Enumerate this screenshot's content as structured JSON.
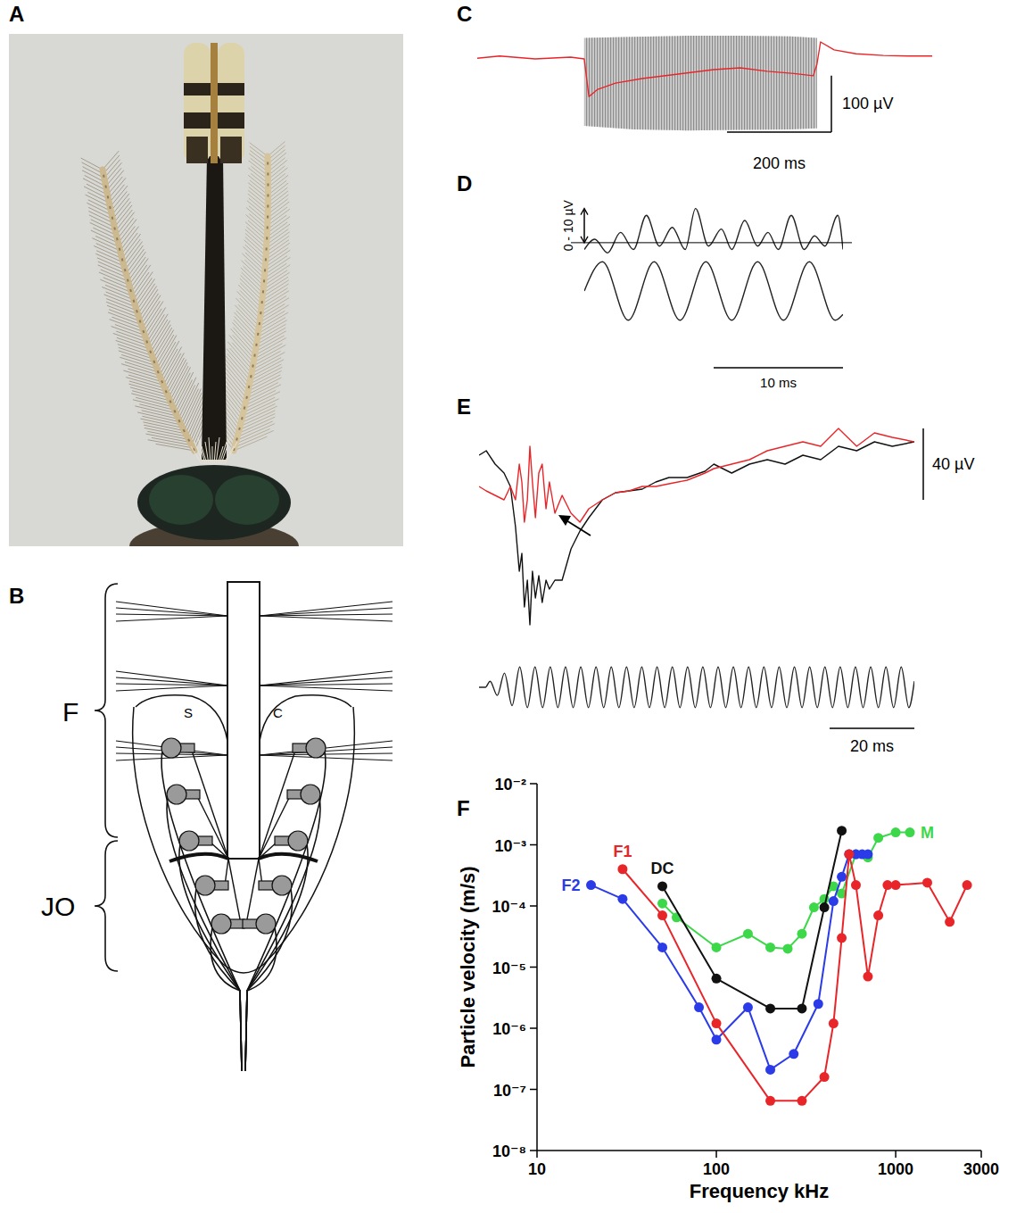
{
  "panel_letters": [
    "A",
    "B",
    "C",
    "D",
    "E",
    "F"
  ],
  "panel_b": {
    "labels": [
      "F",
      "JO",
      "S",
      "C"
    ]
  },
  "chart_data": [
    {
      "type": "line",
      "xlim": [
        0,
        872
      ],
      "ylim": [
        -140,
        50
      ],
      "series": [
        {
          "color": "#e8262a",
          "line_style": "solid",
          "x": [
            0,
            43,
            111,
            179,
            205,
            214,
            231,
            265,
            316,
            385,
            453,
            504,
            556,
            607,
            644,
            651,
            658,
            684,
            726,
            778,
            829,
            872
          ],
          "values": [
            2,
            6,
            1,
            4,
            1,
            -66,
            -53,
            -42,
            -34,
            -26,
            -18,
            -15,
            -21,
            -25,
            -29,
            -9,
            31,
            17,
            10,
            7,
            6,
            6
          ]
        }
      ],
      "band": {
        "color": "#a6a6a6",
        "x": [
          205,
          300,
          400,
          500,
          600,
          651
        ],
        "upper": [
          38,
          40,
          42,
          42,
          41,
          38
        ],
        "lower": [
          -118,
          -124,
          -126,
          -125,
          -124,
          -122
        ]
      },
      "scale_bars": [
        {
          "axis": "y",
          "value": 100,
          "label": "100 µV"
        },
        {
          "axis": "x",
          "value": 200,
          "label": "200 ms"
        }
      ]
    },
    {
      "type": "line",
      "xlim": [
        0,
        20
      ],
      "ylim": [
        -5,
        12
      ],
      "y2lim": [
        -1.1,
        1.1
      ],
      "series": [
        {
          "color": "#222222",
          "line_style": "smooth",
          "x": [
            0,
            0.8,
            1.8,
            2.8,
            3.8,
            4.8,
            5.8,
            6.8,
            7.8,
            8.6,
            9.6,
            10.6,
            11.4,
            12.4,
            13.4,
            14.2,
            15,
            16,
            17,
            17.8,
            18.6,
            19.6,
            20
          ],
          "values": [
            -2,
            1,
            -3,
            3,
            -2,
            8,
            -1,
            4.5,
            -2,
            10,
            -1,
            4,
            -2,
            6.5,
            -1,
            3,
            -2,
            8,
            -2,
            2,
            -1,
            8,
            -2
          ]
        },
        {
          "color": "#222222",
          "line_style": "smooth",
          "axis": "y2",
          "x": [
            0,
            1.4,
            3.4,
            5.4,
            7.4,
            9.4,
            11.4,
            13.4,
            15.4,
            17.4,
            19.4,
            20
          ],
          "values": [
            0,
            1,
            -1,
            1,
            -1,
            1,
            -1,
            1,
            -1,
            1,
            -1,
            -0.8
          ]
        }
      ],
      "scale_bars": [
        {
          "axis": "y",
          "value": 10,
          "label": "0 - 10 µV"
        },
        {
          "axis": "x",
          "value": 10,
          "label": "10 ms"
        }
      ]
    },
    {
      "type": "line",
      "xlim": [
        0,
        102.7
      ],
      "ylim": [
        -100,
        20
      ],
      "y2lim": [
        -1.1,
        1.1
      ],
      "series": [
        {
          "color": "#111111",
          "line_style": "solid",
          "x": [
            0,
            1.7,
            3.8,
            5.9,
            7.4,
            8.6,
            9.5,
            10.1,
            10.7,
            11.4,
            12.0,
            12.6,
            13.3,
            14.1,
            14.9,
            15.8,
            16.6,
            17.9,
            19.6,
            21.7,
            23.8,
            25.9,
            29.1,
            32.2,
            35.4,
            38.5,
            41.7,
            44.8,
            49.1,
            53.3,
            55.4,
            59.6,
            63.8,
            68.0,
            72.2,
            76.4,
            80.6,
            84.8,
            89.1,
            93.3,
            97.5,
            102.7
          ],
          "values": [
            0,
            2.5,
            -5,
            -10,
            -17.5,
            -40,
            -65,
            -55,
            -85,
            -70,
            -95,
            -65,
            -80,
            -67.5,
            -82.5,
            -70,
            -75,
            -70,
            -70,
            -52.5,
            -42.5,
            -35,
            -25,
            -21,
            -20,
            -19,
            -15,
            -12.5,
            -12.5,
            -9,
            -5,
            -10,
            -5,
            -2.5,
            -5,
            0,
            -2.5,
            5,
            2.5,
            7.5,
            5,
            7.5
          ]
        },
        {
          "color": "#e8262a",
          "line_style": "solid",
          "x": [
            0,
            1.7,
            3.8,
            5.9,
            7.4,
            8.6,
            9.5,
            10.1,
            10.7,
            11.4,
            12.0,
            12.6,
            13.3,
            14.1,
            14.9,
            15.8,
            16.6,
            17.9,
            19.6,
            21.7,
            23.8,
            25.9,
            29.1,
            32.2,
            35.4,
            38.5,
            41.7,
            44.8,
            49.1,
            53.3,
            55.4,
            59.6,
            63.8,
            68.0,
            72.2,
            76.4,
            80.6,
            84.8,
            89.1,
            93.3,
            97.5,
            102.7
          ],
          "values": [
            -17.5,
            -20,
            -22.5,
            -25,
            -17.5,
            -25,
            -5,
            -15,
            -37.5,
            -25,
            5,
            -15,
            -35,
            -10,
            -5,
            -30,
            -15,
            -32.5,
            -22.5,
            -32.5,
            -37.5,
            -30,
            -25,
            -21,
            -20,
            -17.5,
            -17.5,
            -16,
            -14,
            -10,
            -7.5,
            -5,
            -2.5,
            2.5,
            5,
            7.5,
            5,
            15,
            5,
            12.5,
            10,
            7.5
          ]
        },
        {
          "color": "#222222",
          "line_style": "smooth",
          "axis": "y2",
          "x": [
            0,
            1.5,
            2.6,
            4.3,
            6.0,
            7.8,
            9.6,
            11.4,
            13.2,
            15.0,
            16.8,
            18.6,
            20.4,
            22.2,
            24.0,
            25.8,
            27.6,
            29.4,
            31.2,
            33.0,
            34.8,
            36.6,
            38.4,
            40.2,
            42.0,
            43.8,
            45.6,
            47.4,
            49.2,
            51.0,
            52.8,
            54.6,
            56.4,
            58.2,
            60.0,
            61.8,
            63.6,
            65.4,
            67.2,
            69.0,
            70.8,
            72.6,
            74.4,
            76.2,
            78.0,
            79.8,
            81.6,
            83.4,
            85.2,
            87.0,
            88.8,
            90.6,
            92.4,
            94.2,
            96.0,
            97.8,
            99.6,
            101.4,
            102.7
          ],
          "values": [
            0,
            0,
            0.3,
            -0.4,
            0.7,
            -0.9,
            1,
            -1,
            1,
            -1,
            1,
            -1,
            1,
            -1,
            1,
            -1,
            1,
            -1,
            1,
            -1,
            1,
            -1,
            1,
            -1,
            1,
            -1,
            1,
            -1,
            1,
            -1,
            1,
            -1,
            1,
            -1,
            1,
            -1,
            1,
            -1,
            1,
            -1,
            1,
            -1,
            1,
            -1,
            1,
            -1,
            1,
            -1,
            1,
            -1,
            1,
            -1,
            1,
            -1,
            1,
            -1,
            1,
            -1,
            0.3
          ]
        }
      ],
      "scale_bars": [
        {
          "axis": "y",
          "value": 40,
          "label": "40 µV"
        },
        {
          "axis": "x",
          "value": 20,
          "label": "20 ms"
        }
      ]
    },
    {
      "type": "line",
      "log": true,
      "grid": false,
      "marker": "circle",
      "x_label": "Frequency kHz",
      "y_label": "Particle velocity (m/s)",
      "xlim": [
        10,
        3000
      ],
      "ylim": [
        1e-08,
        0.01
      ],
      "xticks": [
        10,
        100,
        1000,
        3000
      ],
      "yticks": [
        {
          "value": 1e-08,
          "label": "10⁻⁸"
        },
        {
          "value": 1e-07,
          "label": "10⁻⁷"
        },
        {
          "value": 1e-06,
          "label": "10⁻⁶"
        },
        {
          "value": 1e-05,
          "label": "10⁻⁵"
        },
        {
          "value": 0.0001,
          "label": "10⁻⁴"
        },
        {
          "value": 0.001,
          "label": "10⁻³"
        },
        {
          "value": 0.01,
          "label": "10⁻²"
        }
      ],
      "series": [
        {
          "name": "F1",
          "color": "#e8262a",
          "x": [
            30,
            50,
            100,
            200,
            300,
            400,
            450,
            500,
            550,
            600,
            700,
            800,
            900,
            1000,
            1500,
            2000,
            2500
          ],
          "values": [
            0.0004,
            7e-05,
            1.2e-06,
            6.5e-08,
            6.5e-08,
            1.6e-07,
            1.2e-06,
            3e-05,
            0.0007,
            0.00022,
            7e-06,
            7e-05,
            0.00022,
            0.00022,
            0.00024,
            5.5e-05,
            0.00022
          ]
        },
        {
          "name": "F2",
          "color": "#2b3be8",
          "x": [
            20,
            30,
            50,
            80,
            100,
            150,
            200,
            270,
            370,
            450,
            500,
            550,
            600,
            650,
            700
          ],
          "values": [
            0.00022,
            0.00013,
            2.1e-05,
            2.2e-06,
            6.5e-07,
            2.2e-06,
            2.1e-07,
            3.8e-07,
            2.5e-06,
            0.00012,
            0.0003,
            0.0007,
            0.0007,
            0.0007,
            0.0007
          ]
        },
        {
          "name": "DC",
          "color": "#111111",
          "x": [
            50,
            100,
            200,
            300,
            400,
            500
          ],
          "values": [
            0.00021,
            6.5e-06,
            2.1e-06,
            2.1e-06,
            9.5e-05,
            0.0017
          ]
        },
        {
          "name": "M",
          "color": "#3cd84a",
          "x": [
            50,
            60,
            100,
            150,
            200,
            250,
            300,
            350,
            400,
            450,
            500,
            600,
            700,
            800,
            1000,
            1200
          ],
          "values": [
            0.00011,
            6.5e-05,
            2.1e-05,
            3.5e-05,
            2.1e-05,
            2e-05,
            3.5e-05,
            9.5e-05,
            0.00013,
            0.00021,
            0.00016,
            0.0007,
            0.00062,
            0.0013,
            0.0016,
            0.0016
          ]
        }
      ]
    }
  ]
}
